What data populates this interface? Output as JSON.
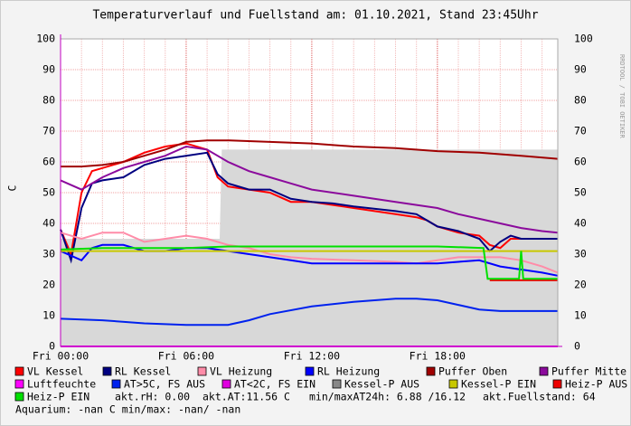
{
  "chart_data": {
    "type": "line",
    "title": "Temperaturverlauf und Fuellstand am: 01.10.2021, Stand 23:45Uhr",
    "y_label": "C",
    "watermark": "RRDTOOL / TOBI OETIKER",
    "xlim": [
      0,
      23.75
    ],
    "xticks": [
      {
        "value": 0,
        "label": "Fri 00:00"
      },
      {
        "value": 6,
        "label": "Fri 06:00"
      },
      {
        "value": 12,
        "label": "Fri 12:00"
      },
      {
        "value": 18,
        "label": "Fri 18:00"
      }
    ],
    "ylim": [
      0,
      100
    ],
    "yticks": [
      0,
      10,
      20,
      30,
      40,
      50,
      60,
      70,
      80,
      90,
      100
    ],
    "grid": true,
    "series": [
      {
        "name": "VL Kessel",
        "color": "#ff0000",
        "x": [
          0,
          0.5,
          1,
          1.5,
          2,
          3,
          4,
          5,
          6,
          7,
          7.5,
          8,
          9,
          10,
          11,
          12,
          13,
          14,
          16,
          17,
          17.5,
          18,
          19,
          20,
          20.5,
          21,
          21.5,
          22,
          23,
          23.75
        ],
        "values": [
          38,
          30,
          50,
          57,
          58,
          60,
          63,
          65,
          66,
          64,
          55,
          52,
          51,
          50,
          47,
          47,
          46,
          45,
          43,
          42,
          41,
          39,
          37,
          36,
          33,
          32,
          35,
          35,
          35,
          35
        ]
      },
      {
        "name": "RL Kessel",
        "color": "#000080",
        "x": [
          0,
          0.5,
          1,
          1.5,
          2,
          3,
          4,
          5,
          6,
          7,
          7.5,
          8,
          9,
          10,
          11,
          12,
          13,
          14,
          16,
          17,
          17.5,
          18,
          19,
          20,
          20.5,
          21,
          21.5,
          22,
          23,
          23.75
        ],
        "values": [
          38,
          28,
          45,
          53,
          54,
          55,
          59,
          61,
          62,
          63,
          56,
          53,
          51,
          51,
          48,
          47,
          46.5,
          45.5,
          44,
          43,
          41,
          39,
          37.5,
          35,
          31,
          34,
          36,
          35,
          35,
          35
        ]
      },
      {
        "name": "VL Heizung",
        "color": "#ff8ca8",
        "x": [
          0,
          1,
          2,
          3,
          4,
          5,
          6,
          7,
          8,
          9,
          10,
          11,
          12,
          14,
          16,
          17,
          18,
          19,
          20,
          21,
          22,
          23,
          23.75
        ],
        "values": [
          37,
          35,
          37,
          37,
          34,
          35,
          36,
          35,
          33,
          32,
          30,
          29,
          28.5,
          28,
          27.5,
          27,
          28,
          29,
          29,
          29,
          28,
          26,
          24
        ]
      },
      {
        "name": "RL Heizung",
        "color": "#0000ff",
        "x": [
          0,
          1,
          1.5,
          2,
          3,
          4,
          5,
          6,
          7,
          8,
          9,
          10,
          11,
          12,
          14,
          16,
          17,
          18,
          19,
          20,
          21,
          22,
          23,
          23.75
        ],
        "values": [
          31,
          28,
          32,
          33,
          33,
          31,
          31,
          32,
          32,
          31,
          30,
          29,
          28,
          27,
          27,
          27,
          27,
          27,
          27.5,
          28,
          26,
          25,
          24,
          23
        ]
      },
      {
        "name": "Puffer Oben",
        "color": "#a00000",
        "x": [
          0,
          1,
          2,
          3,
          4,
          5,
          6,
          7,
          8,
          10,
          12,
          14,
          16,
          18,
          20,
          22,
          23.75
        ],
        "values": [
          58.5,
          58.5,
          59,
          60,
          62,
          64,
          66.5,
          67,
          67,
          66.5,
          66,
          65,
          64.5,
          63.5,
          63,
          62,
          61
        ]
      },
      {
        "name": "Puffer Mitte",
        "color": "#8b0a9c",
        "x": [
          0,
          1,
          2,
          3,
          4,
          5,
          6,
          7,
          8,
          9,
          10,
          11,
          12,
          14,
          16,
          18,
          19,
          20,
          21,
          22,
          23,
          23.75
        ],
        "values": [
          54,
          51,
          55,
          58,
          60,
          62,
          65,
          64,
          60,
          57,
          55,
          53,
          51,
          49,
          47,
          45,
          43,
          41.5,
          40,
          38.5,
          37.5,
          37
        ]
      },
      {
        "name": "Luftfeuchte",
        "color": "#ff00ff",
        "x": [],
        "values": []
      },
      {
        "name": "AT>5C, FS AUS",
        "color": "#0022ee",
        "x": [
          0,
          2,
          4,
          6,
          8,
          9,
          10,
          12,
          14,
          16,
          17,
          18,
          19,
          20,
          21,
          23.75
        ],
        "values": [
          9,
          8.5,
          7.5,
          7,
          7,
          8.5,
          10.5,
          13,
          14.5,
          15.5,
          15.5,
          15,
          13.5,
          12,
          11.5,
          11.5
        ]
      },
      {
        "name": "AT<2C, FS EIN",
        "color": "#e000e0",
        "x": [
          0,
          23.75
        ],
        "values": [
          0,
          0
        ]
      },
      {
        "name": "Kessel-P AUS",
        "color": "#888888",
        "area": true,
        "x": [
          0,
          7.6,
          7.7,
          23.75
        ],
        "values": [
          35,
          35,
          64,
          64
        ]
      },
      {
        "name": "Kessel-P EIN",
        "color": "#c8c800",
        "x": [
          0,
          6,
          12,
          18,
          23.75
        ],
        "values": [
          31,
          31,
          31,
          31,
          31
        ]
      },
      {
        "name": "Heiz-P AUS",
        "color": "#ee0000",
        "x": [
          20.5,
          23.75
        ],
        "values": [
          21.5,
          21.5
        ]
      },
      {
        "name": "Heiz-P EIN",
        "color": "#00e000",
        "x": [
          0,
          2,
          6,
          8,
          12,
          16,
          18,
          20.2,
          20.4,
          21.9,
          22,
          22.1,
          23.75
        ],
        "values": [
          31.5,
          32,
          32,
          32.5,
          32.5,
          32.5,
          32.5,
          32,
          22,
          22,
          31,
          22,
          22
        ]
      }
    ],
    "info": [
      "akt.rH: 0.00",
      "akt.AT:11.56 C",
      "min/maxAT24h: 6.88 /16.12",
      "akt.Fuellstand:   64",
      "Aquarium: -nan C  min/max: -nan/ -nan"
    ]
  }
}
